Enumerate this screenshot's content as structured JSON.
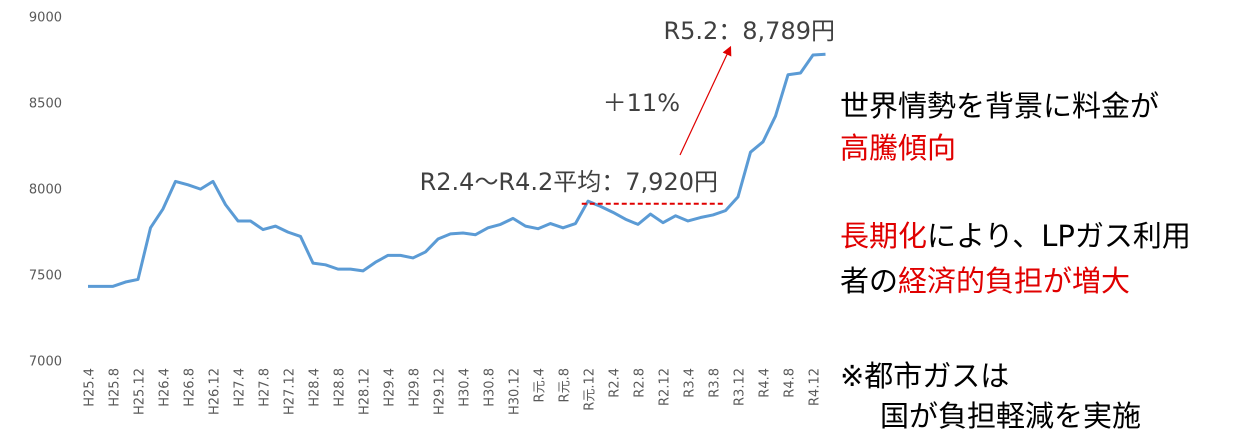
{
  "chart_data": {
    "type": "line",
    "categories": [
      "H25.4",
      null,
      "H25.8",
      null,
      "H25.12",
      null,
      "H26.4",
      null,
      "H26.8",
      null,
      "H26.12",
      null,
      "H27.4",
      null,
      "H27.8",
      null,
      "H27.12",
      null,
      "H28.4",
      null,
      "H28.8",
      null,
      "H28.12",
      null,
      "H29.4",
      null,
      "H29.8",
      null,
      "H29.12",
      null,
      "H30.4",
      null,
      "H30.8",
      null,
      "H30.12",
      null,
      "R元.4",
      null,
      "R元.8",
      null,
      "R元.12",
      null,
      "R2.4",
      null,
      "R2.8",
      null,
      "R2.12",
      null,
      "R3.4",
      null,
      "R3.8",
      null,
      "R3.12",
      null,
      "R4.4",
      null,
      "R4.8",
      null,
      "R4.12",
      null
    ],
    "series": [
      {
        "color": "#5b9bd5",
        "values": [
          7440,
          7440,
          7440,
          7465,
          7480,
          7780,
          7890,
          8050,
          8030,
          8005,
          8050,
          7915,
          7820,
          7820,
          7770,
          7790,
          7755,
          7730,
          7575,
          7565,
          7540,
          7540,
          7530,
          7580,
          7620,
          7620,
          7605,
          7640,
          7715,
          7745,
          7750,
          7740,
          7780,
          7800,
          7835,
          7790,
          7775,
          7805,
          7780,
          7805,
          7935,
          7905,
          7870,
          7830,
          7800,
          7860,
          7810,
          7850,
          7820,
          7840,
          7855,
          7880,
          7960,
          8220,
          8280,
          8430,
          8670,
          8680,
          8785,
          8789
        ]
      }
    ],
    "ylim": [
      7000,
      9000
    ],
    "yticks": [
      7000,
      7500,
      8000,
      8500,
      9000
    ],
    "grid": false,
    "average": {
      "value": 7920,
      "color": "#e00000",
      "label": "R2.4～R4.2平均：7,920円"
    },
    "annotations": {
      "latest": "R5.2：8,789円",
      "increase": "＋11%"
    }
  },
  "side_text": [
    [
      {
        "text": "世界情勢を背景に料金が",
        "color": "#000000"
      }
    ],
    [
      {
        "text": "高騰傾向",
        "color": "#e00000"
      }
    ],
    [
      {
        "text": "長期化",
        "color": "#e00000"
      },
      {
        "text": "により、LPガス利用",
        "color": "#000000"
      }
    ],
    [
      {
        "text": "者の",
        "color": "#000000"
      },
      {
        "text": "経済的負担が増大",
        "color": "#e00000"
      }
    ],
    [
      {
        "text": "※都市ガスは",
        "color": "#000000"
      }
    ],
    [
      {
        "text": "国が負担軽減を実施",
        "color": "#000000"
      }
    ]
  ]
}
